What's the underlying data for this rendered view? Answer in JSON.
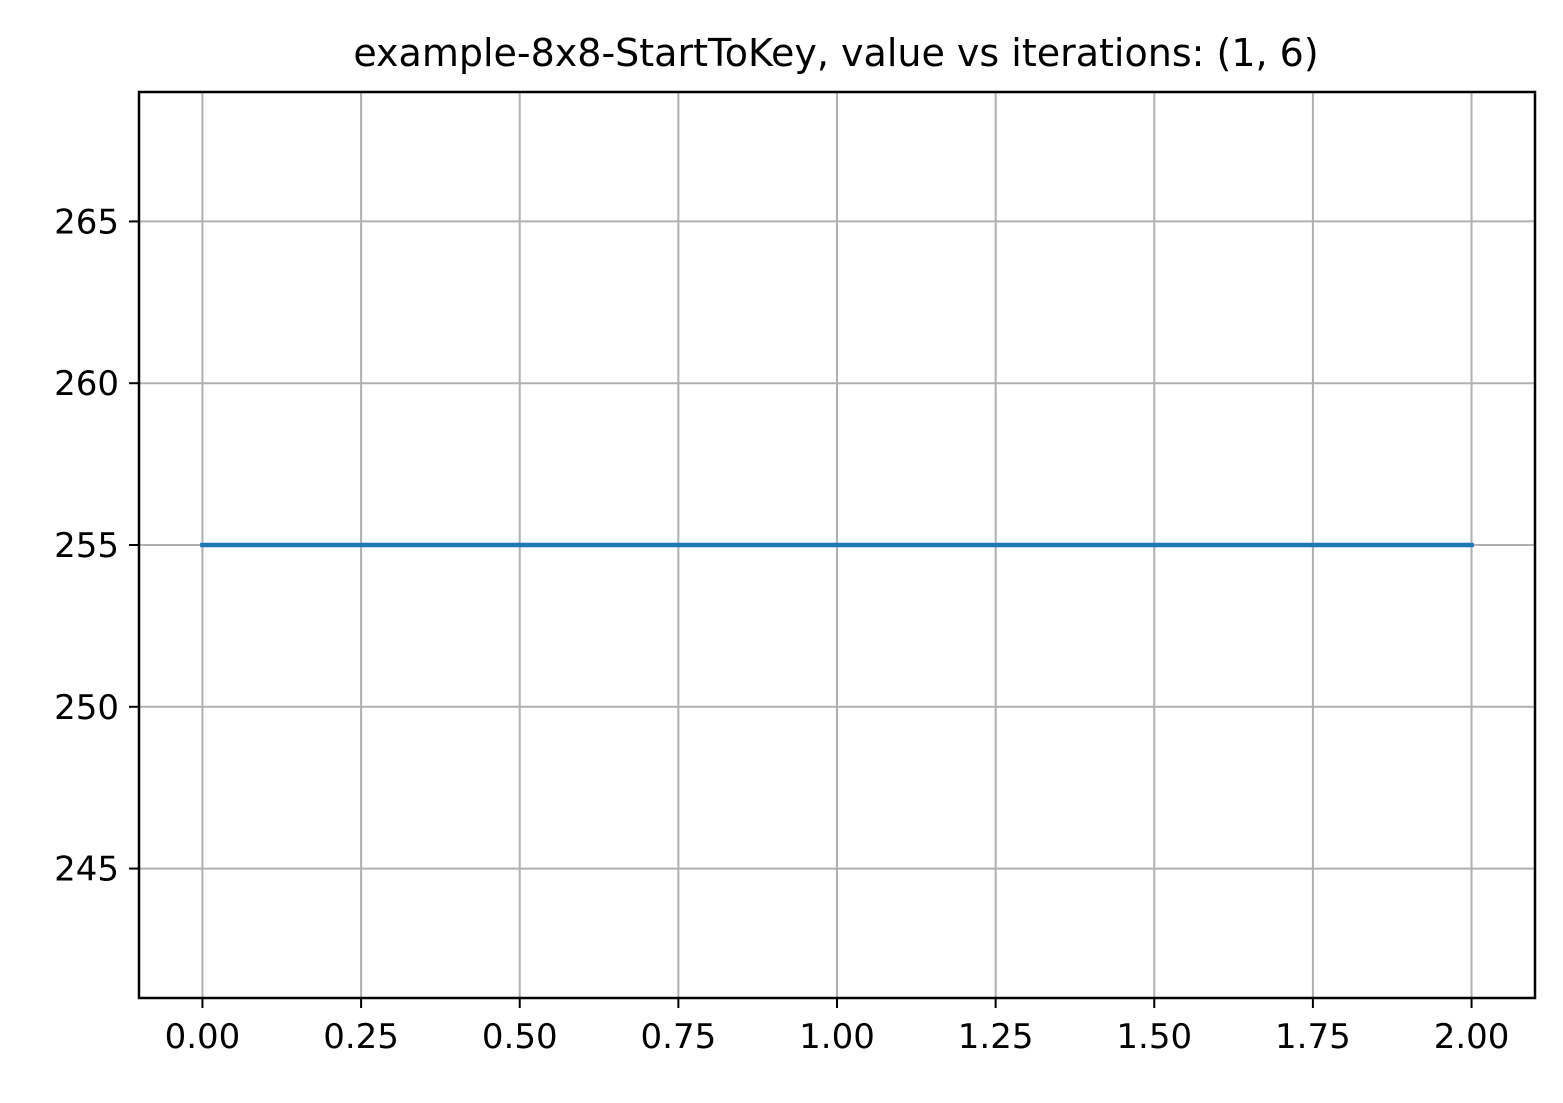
{
  "chart_data": {
    "type": "line",
    "title": "example-8x8-StartToKey, value vs iterations: (1, 6)",
    "xlabel": "",
    "ylabel": "",
    "xlim": [
      -0.1,
      2.1
    ],
    "ylim": [
      241,
      269
    ],
    "xticks": [
      0.0,
      0.25,
      0.5,
      0.75,
      1.0,
      1.25,
      1.5,
      1.75,
      2.0
    ],
    "xtick_labels": [
      "0.00",
      "0.25",
      "0.50",
      "0.75",
      "1.00",
      "1.25",
      "1.50",
      "1.75",
      "2.00"
    ],
    "yticks": [
      245,
      250,
      255,
      260,
      265
    ],
    "ytick_labels": [
      "245",
      "250",
      "255",
      "260",
      "265"
    ],
    "grid": true,
    "series": [
      {
        "x": [
          0,
          1,
          2
        ],
        "y": [
          255,
          255,
          255
        ],
        "color": "#1f77b4"
      }
    ]
  }
}
